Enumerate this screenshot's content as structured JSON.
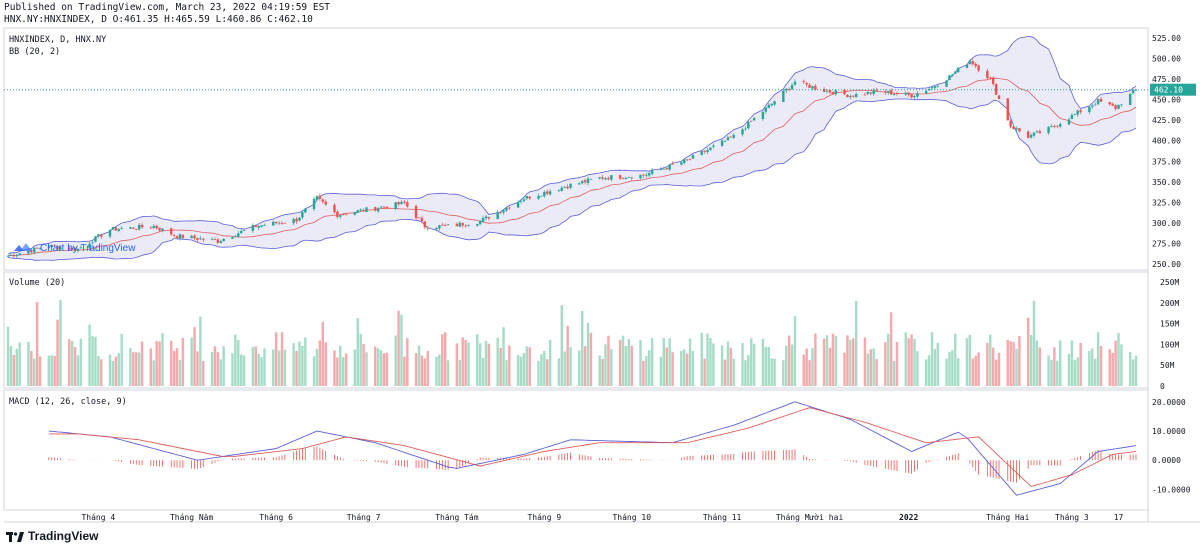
{
  "header": {
    "published": "Published on TradingView.com, March 23, 2022 04:19:59 EST",
    "ohlc": "HNX.NY:HNXINDEX, D O:461.35 H:465.59 L:460.86 C:462.10"
  },
  "price_pane": {
    "title": "HNXINDEX, D, HNX.NY",
    "indicator": "BB (20, 2)",
    "last_price_label": "462.10",
    "watermark": "Chart by TradingView",
    "y_ticks": [
      "525.00",
      "500.00",
      "475.00",
      "450.00",
      "425.00",
      "400.00",
      "375.00",
      "350.00",
      "325.00",
      "300.00",
      "275.00",
      "250.00"
    ]
  },
  "volume_pane": {
    "title": "Volume (20)",
    "y_ticks": [
      "250M",
      "200M",
      "150M",
      "100M",
      "50M",
      "0"
    ]
  },
  "macd_pane": {
    "title": "MACD (12, 26, close, 9)",
    "y_ticks": [
      "20.0000",
      "10.0000",
      "0.0000",
      "-10.0000"
    ]
  },
  "x_axis": {
    "labels": [
      "Tháng 4",
      "Tháng Năm",
      "Tháng 6",
      "Tháng 7",
      "Tháng Tám",
      "Tháng 9",
      "Tháng 10",
      "Tháng 11",
      "Tháng Mười hai",
      "2022",
      "Tháng Hai",
      "Tháng 3",
      "17"
    ]
  },
  "footer": {
    "brand": "TradingView"
  },
  "colors": {
    "up": "#26a69a",
    "down": "#ef5350",
    "bb_band": "#5b5fd6",
    "bb_fill": "#e6e6f5",
    "basis": "#e05c5c",
    "vol_up": "#a6dcc6",
    "vol_down": "#f5a9ad",
    "macd": "#5b5fd6",
    "signal": "#e05c5c",
    "last_price": "#26a69a"
  },
  "chart_data": {
    "type": "candlestick",
    "x_range": [
      "2021-03-01",
      "2022-03-23"
    ],
    "price_ylim": [
      250,
      525
    ],
    "close_path": [
      [
        "2021-03-01",
        260
      ],
      [
        "2021-03-15",
        272
      ],
      [
        "2021-03-25",
        268
      ],
      [
        "2021-04-05",
        292
      ],
      [
        "2021-04-20",
        296
      ],
      [
        "2021-04-28",
        284
      ],
      [
        "2021-05-12",
        278
      ],
      [
        "2021-05-25",
        296
      ],
      [
        "2021-06-08",
        304
      ],
      [
        "2021-06-15",
        330
      ],
      [
        "2021-06-22",
        310
      ],
      [
        "2021-07-05",
        318
      ],
      [
        "2021-07-15",
        324
      ],
      [
        "2021-07-22",
        296
      ],
      [
        "2021-07-30",
        296
      ],
      [
        "2021-08-10",
        302
      ],
      [
        "2021-08-25",
        330
      ],
      [
        "2021-09-08",
        344
      ],
      [
        "2021-09-20",
        355
      ],
      [
        "2021-10-05",
        358
      ],
      [
        "2021-10-20",
        376
      ],
      [
        "2021-11-05",
        405
      ],
      [
        "2021-11-18",
        445
      ],
      [
        "2021-11-26",
        472
      ],
      [
        "2021-12-05",
        462
      ],
      [
        "2021-12-15",
        455
      ],
      [
        "2021-12-25",
        460
      ],
      [
        "2022-01-05",
        455
      ],
      [
        "2022-01-12",
        465
      ],
      [
        "2022-01-18",
        478
      ],
      [
        "2022-01-25",
        498
      ],
      [
        "2022-02-01",
        475
      ],
      [
        "2022-02-08",
        418
      ],
      [
        "2022-02-14",
        405
      ],
      [
        "2022-02-20",
        412
      ],
      [
        "2022-03-02",
        432
      ],
      [
        "2022-03-10",
        448
      ],
      [
        "2022-03-16",
        440
      ],
      [
        "2022-03-23",
        462.1
      ]
    ],
    "last": {
      "open": 461.35,
      "high": 465.59,
      "low": 460.86,
      "close": 462.1
    },
    "volume_ylim": [
      0,
      250
    ],
    "volume_unit": "M",
    "macd_ylim": [
      -15,
      22
    ],
    "macd_path": [
      [
        "2021-03-15",
        10
      ],
      [
        "2021-04-05",
        8
      ],
      [
        "2021-05-05",
        0
      ],
      [
        "2021-06-01",
        4
      ],
      [
        "2021-06-15",
        10
      ],
      [
        "2021-07-05",
        6
      ],
      [
        "2021-08-01",
        -3
      ],
      [
        "2021-08-25",
        2
      ],
      [
        "2021-09-10",
        7
      ],
      [
        "2021-10-15",
        6
      ],
      [
        "2021-11-05",
        12
      ],
      [
        "2021-11-26",
        20
      ],
      [
        "2021-12-15",
        14
      ],
      [
        "2022-01-05",
        3
      ],
      [
        "2022-01-22",
        10
      ],
      [
        "2022-02-10",
        -12
      ],
      [
        "2022-02-25",
        -8
      ],
      [
        "2022-03-10",
        3
      ],
      [
        "2022-03-23",
        5
      ]
    ],
    "signal_path": [
      [
        "2021-03-25",
        9
      ],
      [
        "2021-04-15",
        7
      ],
      [
        "2021-05-15",
        1
      ],
      [
        "2021-06-10",
        4
      ],
      [
        "2021-06-25",
        8
      ],
      [
        "2021-07-15",
        5
      ],
      [
        "2021-08-10",
        -2
      ],
      [
        "2021-09-01",
        3
      ],
      [
        "2021-09-20",
        6
      ],
      [
        "2021-10-20",
        6
      ],
      [
        "2021-11-10",
        11
      ],
      [
        "2021-12-01",
        18
      ],
      [
        "2021-12-20",
        13
      ],
      [
        "2022-01-10",
        6
      ],
      [
        "2022-01-28",
        8
      ],
      [
        "2022-02-15",
        -9
      ],
      [
        "2022-03-01",
        -5
      ],
      [
        "2022-03-15",
        2
      ],
      [
        "2022-03-23",
        3
      ]
    ]
  }
}
